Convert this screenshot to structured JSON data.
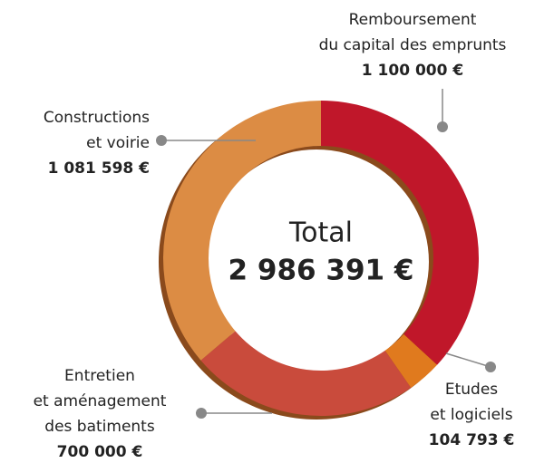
{
  "chart_data": {
    "type": "donut",
    "categories": [
      "Remboursement\ndu capital des emprunts",
      "Etudes\net logiciels",
      "Entretien\net aménagement\ndes batiments",
      "Constructions\net voirie"
    ],
    "values": [
      1100000,
      104793,
      700000,
      1081598
    ],
    "value_labels": [
      "1 100 000 €",
      "104 793 €",
      "700 000 €",
      "1 081 598 €"
    ],
    "colors": [
      "#c0172a",
      "#e07a1e",
      "#c94b3c",
      "#dc8c44"
    ],
    "total": {
      "label": "Total",
      "value": 2986391,
      "value_label": "2 986 391 €"
    }
  }
}
